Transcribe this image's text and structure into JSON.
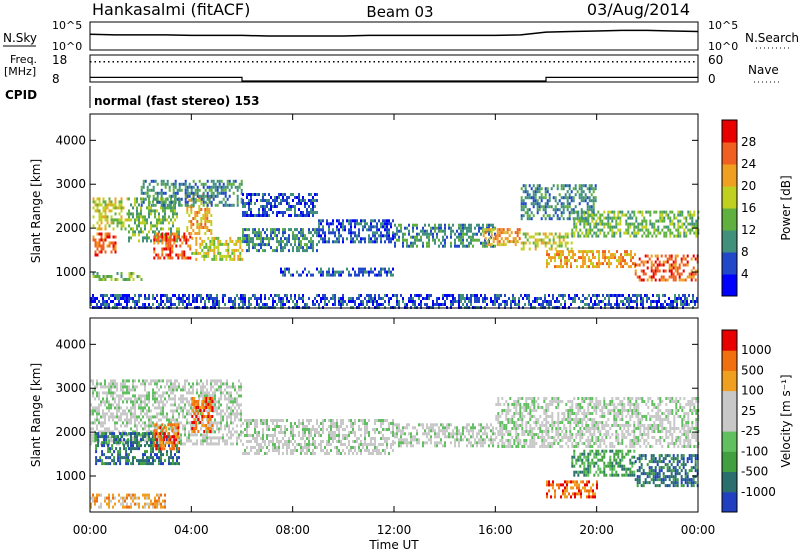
{
  "header": {
    "station": "Hankasalmi (fitACF)",
    "beam": "Beam 03",
    "date": "03/Aug/2014"
  },
  "panel_labels": {
    "nsky": "N.Sky",
    "nsky_ticks": [
      "10^5",
      "10^0"
    ],
    "nsearch": "N.Search",
    "nsearch_ticks": [
      "10^5",
      "10^0"
    ],
    "freq_label": "Freq.",
    "freq_unit": "[MHz]",
    "freq_ticks": [
      "18",
      "8"
    ],
    "nave": "Nave",
    "nave_ticks": [
      "60",
      "0"
    ],
    "cpid": "CPID",
    "cpid_value": "normal (fast stereo) 153"
  },
  "chart_data": [
    {
      "type": "line",
      "name": "nsky-nsearch",
      "x": [
        0,
        1,
        2,
        3,
        4,
        5,
        6,
        7,
        8,
        9,
        10,
        11,
        12,
        13,
        14,
        15,
        16,
        17,
        18,
        19,
        20,
        21,
        22,
        23,
        24
      ],
      "nsky_log": [
        2.8,
        2.7,
        2.7,
        2.7,
        2.6,
        2.6,
        2.6,
        2.5,
        2.5,
        2.5,
        2.5,
        2.6,
        2.6,
        2.6,
        2.6,
        2.6,
        2.6,
        2.7,
        3.2,
        3.3,
        3.4,
        3.5,
        3.5,
        3.4,
        3.3
      ],
      "ylim_log": [
        0,
        5
      ]
    },
    {
      "type": "line",
      "name": "frequency-nave",
      "x": [
        0,
        6,
        6,
        18,
        18,
        24
      ],
      "nave": [
        8,
        8,
        0,
        0,
        8,
        8
      ],
      "freq_mhz": 15.5,
      "freq_ylim": [
        8,
        18
      ],
      "nave_ylim": [
        0,
        60
      ]
    },
    {
      "type": "heatmap",
      "name": "power",
      "xlabel": "Time UT",
      "ylabel": "Slant Range [km]",
      "xticks": [
        "00:00",
        "04:00",
        "08:00",
        "12:00",
        "16:00",
        "20:00",
        "00:00"
      ],
      "xlim": [
        0,
        24
      ],
      "yticks": [
        1000,
        2000,
        3000,
        4000
      ],
      "ylim": [
        180,
        4600
      ],
      "colorbar_label": "Power [dB]",
      "colorbar_ticks": [
        4,
        8,
        12,
        16,
        20,
        24,
        28
      ],
      "colors": [
        "#0000ff",
        "#2048c8",
        "#40907c",
        "#60b040",
        "#c0d020",
        "#f0a020",
        "#f06020",
        "#e80000"
      ],
      "bands": [
        {
          "t": [
            0.1,
            1.5
          ],
          "r": [
            2000,
            2700
          ],
          "level": 4
        },
        {
          "t": [
            1.5,
            3.5
          ],
          "r": [
            1700,
            2700
          ],
          "level": 3
        },
        {
          "t": [
            0.1,
            1.0
          ],
          "r": [
            1400,
            1900
          ],
          "level": 6
        },
        {
          "t": [
            2.5,
            4.0
          ],
          "r": [
            1300,
            1900
          ],
          "level": 6
        },
        {
          "t": [
            3.8,
            4.8
          ],
          "r": [
            1900,
            2800
          ],
          "level": 5
        },
        {
          "t": [
            0.1,
            2.0
          ],
          "r": [
            800,
            1000
          ],
          "level": 3
        },
        {
          "t": [
            2.0,
            6.0
          ],
          "r": [
            2500,
            3100
          ],
          "level": 2
        },
        {
          "t": [
            4.0,
            6.0
          ],
          "r": [
            1300,
            1800
          ],
          "level": 4
        },
        {
          "t": [
            6.0,
            9.0
          ],
          "r": [
            1500,
            2000
          ],
          "level": 2
        },
        {
          "t": [
            6.0,
            9.0
          ],
          "r": [
            2300,
            2800
          ],
          "level": 1
        },
        {
          "t": [
            9.0,
            12.0
          ],
          "r": [
            1700,
            2200
          ],
          "level": 1
        },
        {
          "t": [
            7.5,
            12.0
          ],
          "r": [
            900,
            1100
          ],
          "level": 1
        },
        {
          "t": [
            12.0,
            16.0
          ],
          "r": [
            1600,
            2100
          ],
          "level": 2
        },
        {
          "t": [
            15.5,
            17.0
          ],
          "r": [
            1600,
            2000
          ],
          "level": 5
        },
        {
          "t": [
            17.0,
            19.0
          ],
          "r": [
            1500,
            1900
          ],
          "level": 4
        },
        {
          "t": [
            17.0,
            20.0
          ],
          "r": [
            2200,
            3000
          ],
          "level": 2
        },
        {
          "t": [
            18.0,
            21.5
          ],
          "r": [
            1100,
            1500
          ],
          "level": 5
        },
        {
          "t": [
            19.0,
            24.0
          ],
          "r": [
            1800,
            2400
          ],
          "level": 3
        },
        {
          "t": [
            21.5,
            24.0
          ],
          "r": [
            800,
            1400
          ],
          "level": 6
        },
        {
          "t": [
            0.0,
            24.0
          ],
          "r": [
            200,
            500
          ],
          "level": 1
        }
      ]
    },
    {
      "type": "heatmap",
      "name": "velocity",
      "xlabel": "Time UT",
      "ylabel": "Slant Range [km]",
      "xticks": [
        "00:00",
        "04:00",
        "08:00",
        "12:00",
        "16:00",
        "20:00",
        "00:00"
      ],
      "xlim": [
        0,
        24
      ],
      "yticks": [
        1000,
        2000,
        3000,
        4000
      ],
      "ylim": [
        180,
        4600
      ],
      "colorbar_label": "Velocity [m s⁻¹]",
      "colorbar_ticks": [
        1000,
        500,
        100,
        25,
        -25,
        -100,
        -500,
        -1000
      ],
      "colors": [
        "#2040c0",
        "#2a6e6e",
        "#40a040",
        "#60c060",
        "#c8c8c8",
        "#c8c8c8",
        "#f0a020",
        "#f07010",
        "#e80000"
      ],
      "bands": [
        {
          "t": [
            0.0,
            6.0
          ],
          "r": [
            1700,
            3200
          ],
          "level": 4
        },
        {
          "t": [
            0.2,
            1.5
          ],
          "r": [
            1300,
            2000
          ],
          "level": 1
        },
        {
          "t": [
            1.5,
            3.5
          ],
          "r": [
            1300,
            2000
          ],
          "level": 1
        },
        {
          "t": [
            2.5,
            3.5
          ],
          "r": [
            1600,
            2200
          ],
          "level": 7
        },
        {
          "t": [
            4.0,
            4.8
          ],
          "r": [
            2000,
            2800
          ],
          "level": 7
        },
        {
          "t": [
            0.0,
            3.0
          ],
          "r": [
            300,
            600
          ],
          "level": 6
        },
        {
          "t": [
            6.0,
            12.0
          ],
          "r": [
            1500,
            2300
          ],
          "level": 4
        },
        {
          "t": [
            12.0,
            16.0
          ],
          "r": [
            1700,
            2200
          ],
          "level": 4
        },
        {
          "t": [
            16.0,
            24.0
          ],
          "r": [
            1700,
            2800
          ],
          "level": 4
        },
        {
          "t": [
            18.0,
            20.0
          ],
          "r": [
            500,
            900
          ],
          "level": 7
        },
        {
          "t": [
            19.0,
            21.5
          ],
          "r": [
            1000,
            1600
          ],
          "level": 2
        },
        {
          "t": [
            21.5,
            24.0
          ],
          "r": [
            800,
            1500
          ],
          "level": 1
        }
      ]
    }
  ]
}
